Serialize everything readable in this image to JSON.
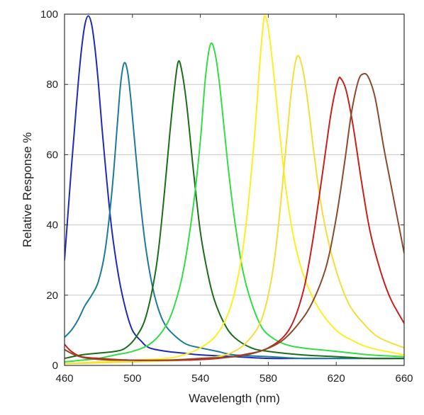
{
  "chart_data": {
    "type": "line",
    "title": "",
    "xlabel": "Wavelength (nm)",
    "ylabel": "Relative Response %",
    "xlim": [
      460,
      660
    ],
    "ylim": [
      0,
      100
    ],
    "xticks": [
      460,
      500,
      540,
      580,
      620,
      660
    ],
    "yticks": [
      0,
      20,
      40,
      60,
      80,
      100
    ],
    "grid": "horizontal",
    "legend": "none",
    "series": [
      {
        "color": "#1f2bb0",
        "points": [
          [
            460,
            30
          ],
          [
            462,
            43
          ],
          [
            464,
            56
          ],
          [
            466,
            68
          ],
          [
            468,
            80
          ],
          [
            470,
            90
          ],
          [
            472,
            97
          ],
          [
            474,
            99.5
          ],
          [
            476,
            97
          ],
          [
            478,
            90
          ],
          [
            480,
            80
          ],
          [
            482,
            68
          ],
          [
            485,
            52
          ],
          [
            488,
            38
          ],
          [
            492,
            25
          ],
          [
            496,
            16
          ],
          [
            500,
            10
          ],
          [
            505,
            7
          ],
          [
            510,
            5
          ],
          [
            520,
            4
          ],
          [
            530,
            3.5
          ],
          [
            540,
            3
          ],
          [
            560,
            2.5
          ],
          [
            580,
            2
          ],
          [
            600,
            2
          ],
          [
            620,
            2
          ],
          [
            640,
            2
          ],
          [
            660,
            2
          ]
        ]
      },
      {
        "color": "#1f7a9a",
        "points": [
          [
            460,
            8
          ],
          [
            464,
            10
          ],
          [
            468,
            13
          ],
          [
            472,
            17
          ],
          [
            476,
            20
          ],
          [
            480,
            24
          ],
          [
            484,
            33
          ],
          [
            488,
            50
          ],
          [
            491,
            68
          ],
          [
            493,
            80
          ],
          [
            495,
            86
          ],
          [
            497,
            84
          ],
          [
            499,
            76
          ],
          [
            502,
            60
          ],
          [
            505,
            45
          ],
          [
            508,
            33
          ],
          [
            512,
            22
          ],
          [
            516,
            15
          ],
          [
            520,
            11
          ],
          [
            526,
            8
          ],
          [
            532,
            6
          ],
          [
            540,
            5
          ],
          [
            550,
            4
          ],
          [
            560,
            3
          ],
          [
            580,
            2.5
          ],
          [
            600,
            2
          ],
          [
            620,
            2
          ],
          [
            640,
            2
          ],
          [
            660,
            2
          ]
        ]
      },
      {
        "color": "#1a6e1a",
        "points": [
          [
            460,
            2
          ],
          [
            470,
            3
          ],
          [
            480,
            3.5
          ],
          [
            490,
            4
          ],
          [
            496,
            5
          ],
          [
            502,
            8
          ],
          [
            508,
            14
          ],
          [
            514,
            28
          ],
          [
            518,
            45
          ],
          [
            522,
            66
          ],
          [
            525,
            80
          ],
          [
            527,
            86.5
          ],
          [
            529,
            84
          ],
          [
            532,
            74
          ],
          [
            536,
            55
          ],
          [
            540,
            38
          ],
          [
            544,
            27
          ],
          [
            548,
            19
          ],
          [
            554,
            12
          ],
          [
            560,
            8
          ],
          [
            570,
            5
          ],
          [
            580,
            4
          ],
          [
            600,
            3
          ],
          [
            620,
            2.5
          ],
          [
            640,
            2
          ],
          [
            660,
            2
          ]
        ]
      },
      {
        "color": "#33dd44",
        "points": [
          [
            460,
            1
          ],
          [
            470,
            1.5
          ],
          [
            480,
            2
          ],
          [
            490,
            3
          ],
          [
            500,
            4
          ],
          [
            510,
            6
          ],
          [
            518,
            10
          ],
          [
            524,
            16
          ],
          [
            530,
            27
          ],
          [
            536,
            46
          ],
          [
            540,
            64
          ],
          [
            543,
            82
          ],
          [
            546,
            91.5
          ],
          [
            549,
            88
          ],
          [
            552,
            77
          ],
          [
            556,
            58
          ],
          [
            560,
            42
          ],
          [
            565,
            27
          ],
          [
            570,
            18
          ],
          [
            576,
            11
          ],
          [
            582,
            8
          ],
          [
            590,
            6
          ],
          [
            600,
            5
          ],
          [
            620,
            4
          ],
          [
            640,
            3
          ],
          [
            660,
            2.5
          ]
        ]
      },
      {
        "color": "#ffee22",
        "points": [
          [
            460,
            0.5
          ],
          [
            480,
            1
          ],
          [
            500,
            1.5
          ],
          [
            520,
            2
          ],
          [
            530,
            3
          ],
          [
            540,
            5
          ],
          [
            550,
            9
          ],
          [
            558,
            17
          ],
          [
            564,
            30
          ],
          [
            568,
            45
          ],
          [
            572,
            66
          ],
          [
            575,
            86
          ],
          [
            577,
            97
          ],
          [
            578,
            99.5
          ],
          [
            580,
            96
          ],
          [
            583,
            84
          ],
          [
            587,
            65
          ],
          [
            591,
            48
          ],
          [
            596,
            34
          ],
          [
            602,
            24
          ],
          [
            610,
            16
          ],
          [
            620,
            10
          ],
          [
            630,
            7
          ],
          [
            640,
            5
          ],
          [
            660,
            3
          ]
        ]
      },
      {
        "color": "#f5dd3c",
        "points": [
          [
            460,
            0.5
          ],
          [
            500,
            1
          ],
          [
            530,
            1.5
          ],
          [
            550,
            2.5
          ],
          [
            560,
            4
          ],
          [
            568,
            7
          ],
          [
            576,
            13
          ],
          [
            582,
            25
          ],
          [
            586,
            40
          ],
          [
            590,
            60
          ],
          [
            594,
            80
          ],
          [
            597,
            88
          ],
          [
            600,
            85
          ],
          [
            603,
            76
          ],
          [
            607,
            60
          ],
          [
            611,
            46
          ],
          [
            616,
            34
          ],
          [
            622,
            24
          ],
          [
            628,
            17
          ],
          [
            636,
            12
          ],
          [
            645,
            8
          ],
          [
            660,
            5
          ]
        ]
      },
      {
        "color": "#c8201c",
        "points": [
          [
            460,
            6
          ],
          [
            464,
            4
          ],
          [
            470,
            2.5
          ],
          [
            480,
            2
          ],
          [
            500,
            1.5
          ],
          [
            530,
            1.5
          ],
          [
            550,
            2
          ],
          [
            565,
            3
          ],
          [
            580,
            5
          ],
          [
            592,
            10
          ],
          [
            600,
            20
          ],
          [
            606,
            35
          ],
          [
            612,
            55
          ],
          [
            617,
            72
          ],
          [
            621,
            81
          ],
          [
            623,
            81.5
          ],
          [
            626,
            78
          ],
          [
            630,
            68
          ],
          [
            635,
            52
          ],
          [
            640,
            38
          ],
          [
            646,
            27
          ],
          [
            652,
            19
          ],
          [
            660,
            12
          ]
        ]
      },
      {
        "color": "#8b4a2a",
        "points": [
          [
            460,
            4.5
          ],
          [
            466,
            3
          ],
          [
            474,
            2
          ],
          [
            490,
            1.5
          ],
          [
            520,
            1.5
          ],
          [
            540,
            2
          ],
          [
            560,
            2.5
          ],
          [
            575,
            4
          ],
          [
            588,
            7
          ],
          [
            598,
            12
          ],
          [
            606,
            18
          ],
          [
            614,
            28
          ],
          [
            620,
            42
          ],
          [
            625,
            58
          ],
          [
            629,
            72
          ],
          [
            633,
            81
          ],
          [
            636,
            83
          ],
          [
            639,
            82
          ],
          [
            643,
            76
          ],
          [
            648,
            62
          ],
          [
            652,
            52
          ],
          [
            656,
            42
          ],
          [
            660,
            32
          ]
        ]
      }
    ]
  }
}
